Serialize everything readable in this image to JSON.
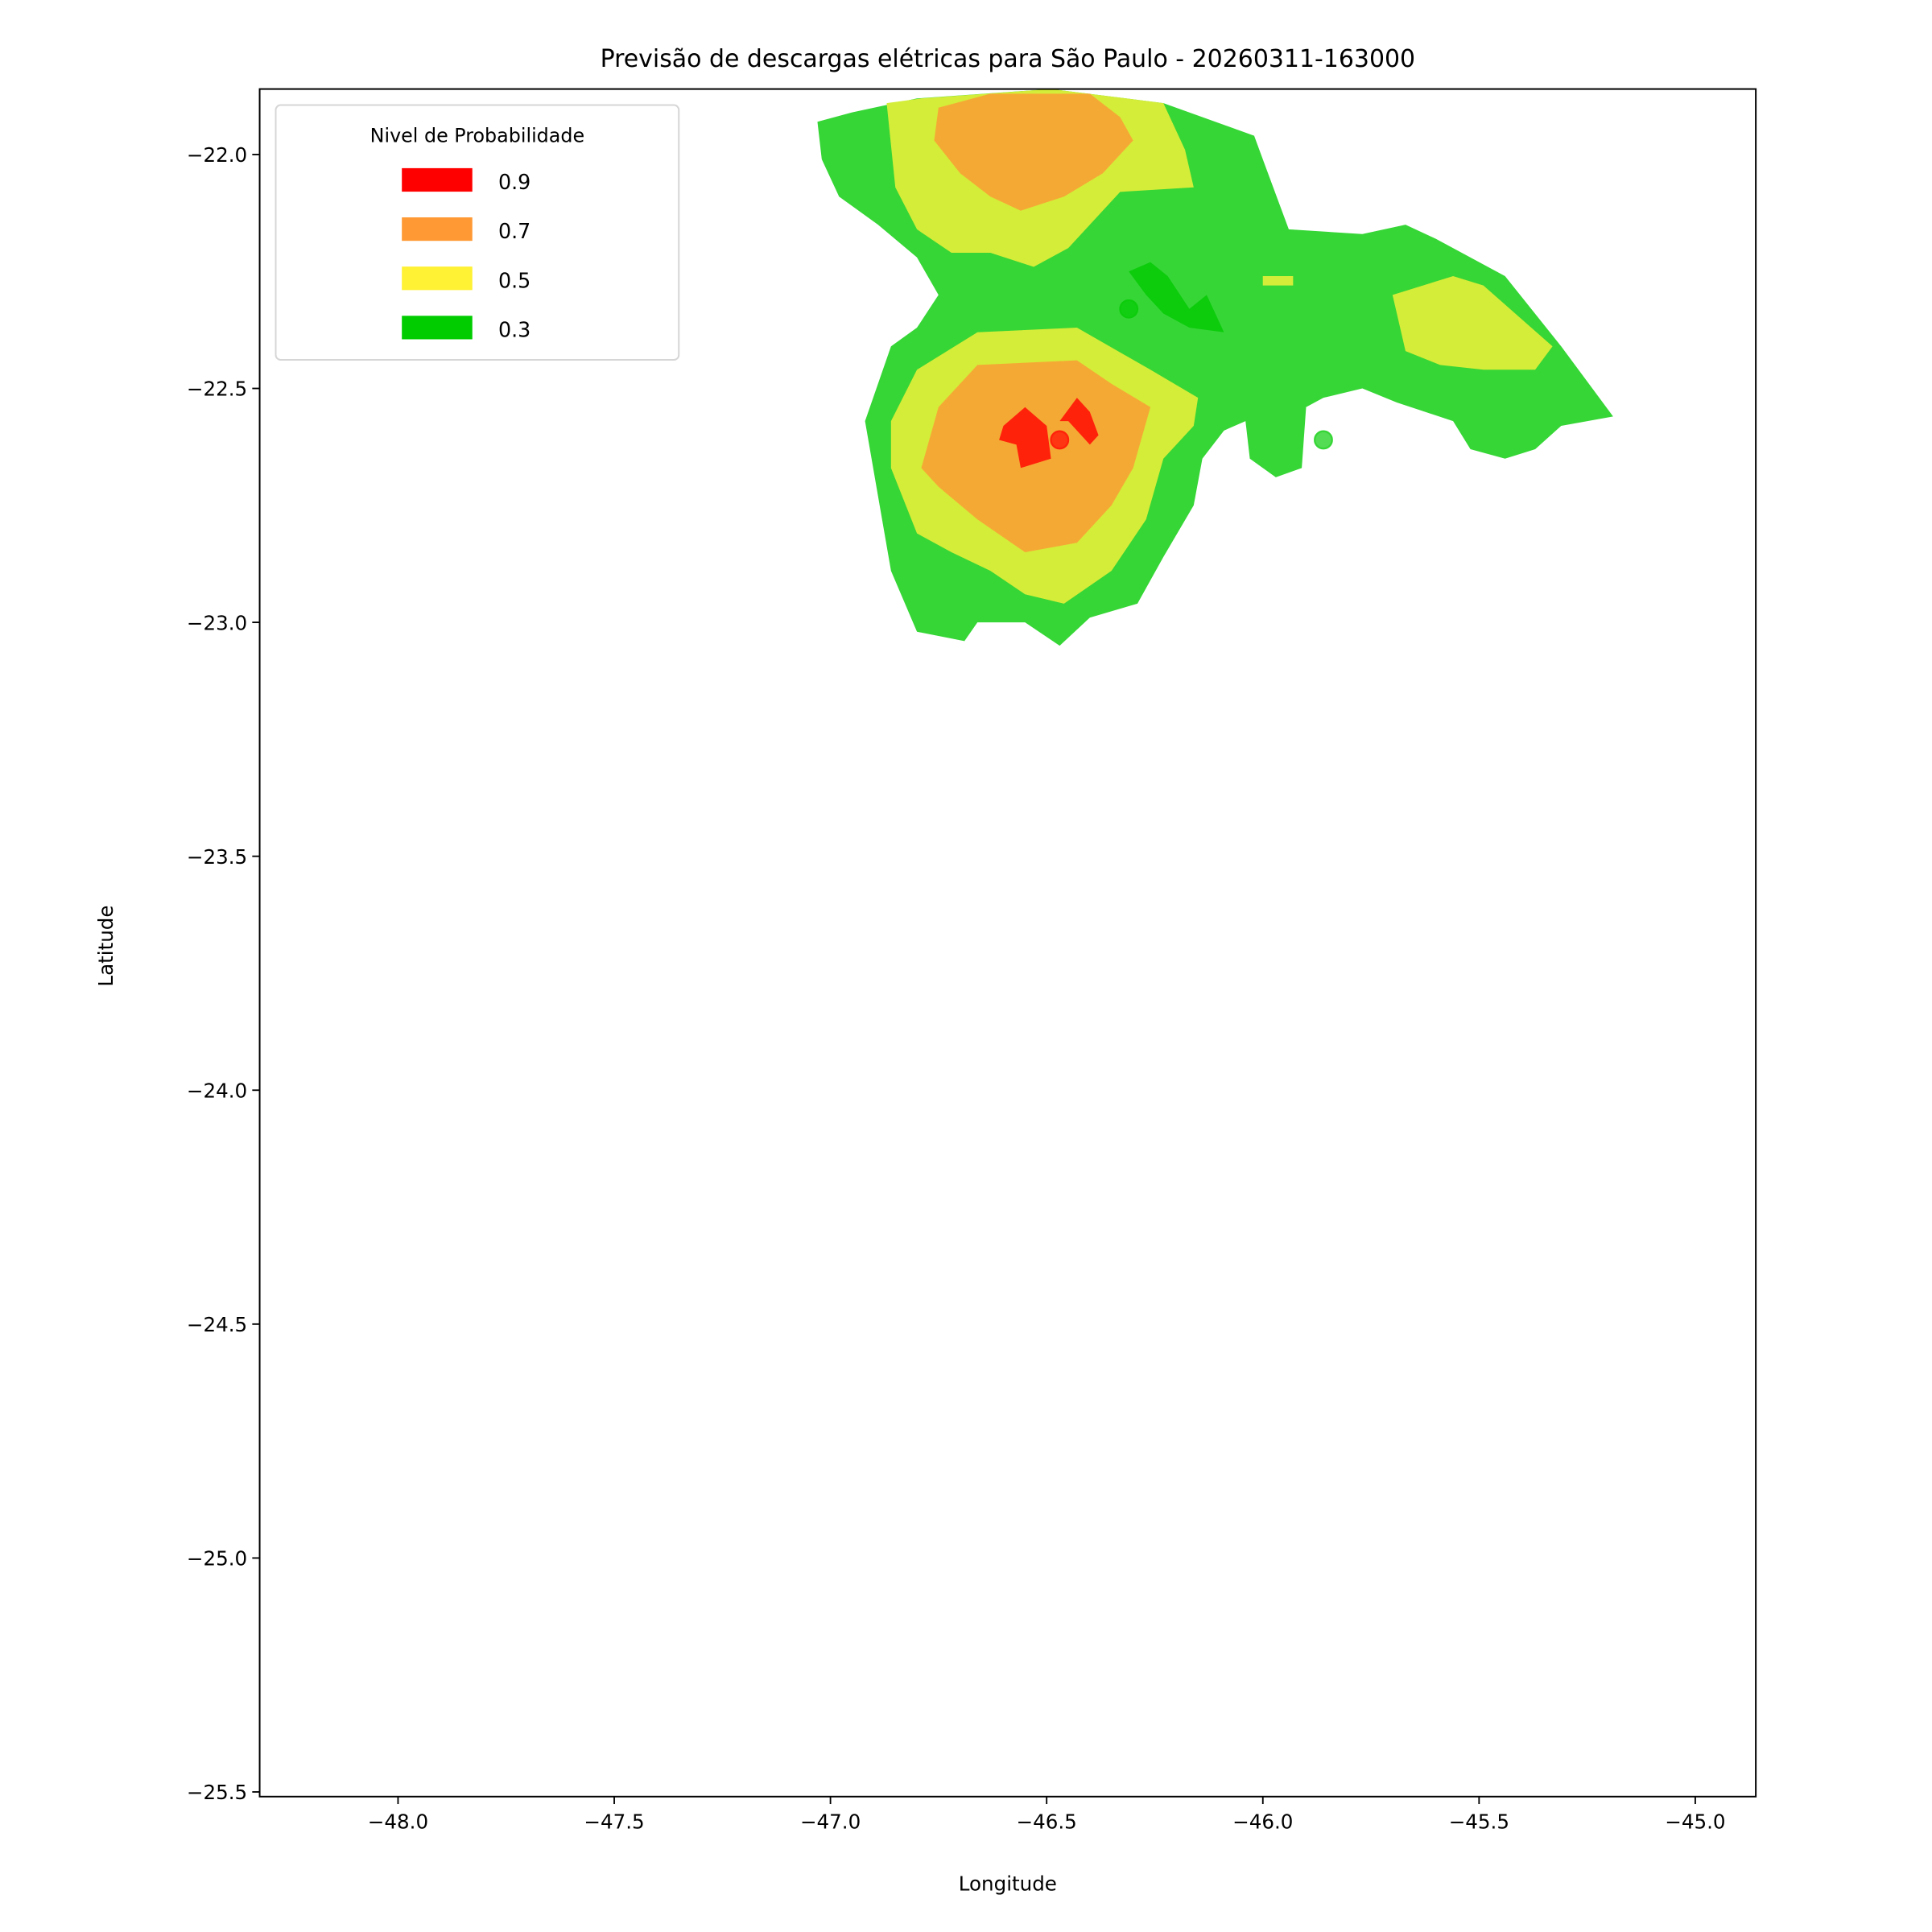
{
  "chart_data": {
    "type": "contour",
    "title": "Previsão de descargas elétricas para São Paulo - 20260311-163000",
    "xlabel": "Longitude",
    "ylabel": "Latitude",
    "xlim": [
      -48.32,
      -44.86
    ],
    "ylim": [
      -25.51,
      -21.86
    ],
    "xticks": [
      -48.0,
      -47.5,
      -47.0,
      -46.5,
      -46.0,
      -45.5,
      -45.0
    ],
    "xtick_labels": [
      "−48.0",
      "−47.5",
      "−47.0",
      "−46.5",
      "−46.0",
      "−45.5",
      "−45.0"
    ],
    "yticks": [
      -22.0,
      -22.5,
      -23.0,
      -23.5,
      -24.0,
      -24.5,
      -25.0,
      -25.5
    ],
    "ytick_labels": [
      "−22.0",
      "−22.5",
      "−23.0",
      "−23.5",
      "−24.0",
      "−24.5",
      "−25.0",
      "−25.5"
    ],
    "grid": false,
    "legend": {
      "title": "Nivel de Probabilidade",
      "placement": "upper-left",
      "entries": [
        {
          "label": "0.9",
          "color": "#ff0000"
        },
        {
          "label": "0.7",
          "color": "#ff9933"
        },
        {
          "label": "0.5",
          "color": "#fff133"
        },
        {
          "label": "0.3",
          "color": "#00cc00"
        }
      ]
    },
    "regions": [
      {
        "level": 0.3,
        "color": "#36d636",
        "polygon": [
          [
            -47.03,
            -21.93
          ],
          [
            -46.95,
            -21.91
          ],
          [
            -46.8,
            -21.88
          ],
          [
            -46.49,
            -21.86
          ],
          [
            -46.23,
            -21.89
          ],
          [
            -46.02,
            -21.96
          ],
          [
            -46.0,
            -22.01
          ],
          [
            -45.94,
            -22.16
          ],
          [
            -45.77,
            -22.17
          ],
          [
            -45.67,
            -22.15
          ],
          [
            -45.6,
            -22.18
          ],
          [
            -45.44,
            -22.26
          ],
          [
            -45.31,
            -22.41
          ],
          [
            -45.19,
            -22.56
          ],
          [
            -45.31,
            -22.58
          ],
          [
            -45.37,
            -22.63
          ],
          [
            -45.44,
            -22.65
          ],
          [
            -45.52,
            -22.63
          ],
          [
            -45.56,
            -22.57
          ],
          [
            -45.69,
            -22.53
          ],
          [
            -45.77,
            -22.5
          ],
          [
            -45.86,
            -22.52
          ],
          [
            -45.9,
            -22.54
          ],
          [
            -45.91,
            -22.67
          ],
          [
            -45.97,
            -22.69
          ],
          [
            -46.03,
            -22.65
          ],
          [
            -46.04,
            -22.57
          ],
          [
            -46.09,
            -22.59
          ],
          [
            -46.14,
            -22.65
          ],
          [
            -46.16,
            -22.75
          ],
          [
            -46.23,
            -22.86
          ],
          [
            -46.29,
            -22.96
          ],
          [
            -46.4,
            -22.99
          ],
          [
            -46.47,
            -23.05
          ],
          [
            -46.55,
            -23.0
          ],
          [
            -46.66,
            -23.0
          ],
          [
            -46.69,
            -23.04
          ],
          [
            -46.8,
            -23.02
          ],
          [
            -46.86,
            -22.89
          ],
          [
            -46.92,
            -22.57
          ],
          [
            -46.86,
            -22.41
          ],
          [
            -46.8,
            -22.37
          ],
          [
            -46.75,
            -22.3
          ],
          [
            -46.8,
            -22.22
          ],
          [
            -46.89,
            -22.15
          ],
          [
            -46.98,
            -22.09
          ],
          [
            -47.02,
            -22.01
          ]
        ]
      },
      {
        "level": 0.5,
        "color": "#d4ed38",
        "polygon": [
          [
            -46.87,
            -21.89
          ],
          [
            -46.79,
            -21.88
          ],
          [
            -46.49,
            -21.86
          ],
          [
            -46.23,
            -21.89
          ],
          [
            -46.18,
            -21.99
          ],
          [
            -46.16,
            -22.07
          ],
          [
            -46.33,
            -22.08
          ],
          [
            -46.45,
            -22.2
          ],
          [
            -46.53,
            -22.24
          ],
          [
            -46.63,
            -22.21
          ],
          [
            -46.72,
            -22.21
          ],
          [
            -46.8,
            -22.16
          ],
          [
            -46.85,
            -22.07
          ]
        ]
      },
      {
        "level": 0.5,
        "color": "#d4ed38",
        "polygon": [
          [
            -46.86,
            -22.57
          ],
          [
            -46.8,
            -22.46
          ],
          [
            -46.66,
            -22.38
          ],
          [
            -46.43,
            -22.37
          ],
          [
            -46.26,
            -22.46
          ],
          [
            -46.15,
            -22.52
          ],
          [
            -46.16,
            -22.58
          ],
          [
            -46.23,
            -22.65
          ],
          [
            -46.27,
            -22.78
          ],
          [
            -46.35,
            -22.89
          ],
          [
            -46.46,
            -22.96
          ],
          [
            -46.55,
            -22.94
          ],
          [
            -46.63,
            -22.89
          ],
          [
            -46.72,
            -22.85
          ],
          [
            -46.8,
            -22.81
          ],
          [
            -46.86,
            -22.67
          ]
        ]
      },
      {
        "level": 0.5,
        "color": "#d4ed38",
        "polygon": [
          [
            -45.7,
            -22.3
          ],
          [
            -45.56,
            -22.26
          ],
          [
            -45.49,
            -22.28
          ],
          [
            -45.33,
            -22.41
          ],
          [
            -45.37,
            -22.46
          ],
          [
            -45.49,
            -22.46
          ],
          [
            -45.59,
            -22.45
          ],
          [
            -45.67,
            -22.42
          ]
        ]
      },
      {
        "level": 0.5,
        "color": "#d4ed38",
        "polygon": [
          [
            -46.0,
            -22.26
          ],
          [
            -45.93,
            -22.26
          ],
          [
            -45.93,
            -22.28
          ],
          [
            -46.0,
            -22.28
          ]
        ]
      },
      {
        "level": 0.3,
        "color": "#0ccc0c",
        "polygon": [
          [
            -46.31,
            -22.25
          ],
          [
            -46.26,
            -22.23
          ],
          [
            -46.22,
            -22.26
          ],
          [
            -46.17,
            -22.33
          ],
          [
            -46.13,
            -22.3
          ],
          [
            -46.09,
            -22.38
          ],
          [
            -46.17,
            -22.37
          ],
          [
            -46.23,
            -22.34
          ],
          [
            -46.27,
            -22.3
          ]
        ]
      },
      {
        "level": 0.7,
        "color": "#f5a935",
        "polygon": [
          [
            -46.75,
            -21.9
          ],
          [
            -46.63,
            -21.87
          ],
          [
            -46.4,
            -21.87
          ],
          [
            -46.33,
            -21.92
          ],
          [
            -46.3,
            -21.97
          ],
          [
            -46.37,
            -22.04
          ],
          [
            -46.46,
            -22.09
          ],
          [
            -46.56,
            -22.12
          ],
          [
            -46.63,
            -22.09
          ],
          [
            -46.7,
            -22.04
          ],
          [
            -46.76,
            -21.97
          ]
        ]
      },
      {
        "level": 0.7,
        "color": "#f5a935",
        "polygon": [
          [
            -46.79,
            -22.67
          ],
          [
            -46.75,
            -22.54
          ],
          [
            -46.66,
            -22.45
          ],
          [
            -46.43,
            -22.44
          ],
          [
            -46.35,
            -22.49
          ],
          [
            -46.26,
            -22.54
          ],
          [
            -46.3,
            -22.67
          ],
          [
            -46.35,
            -22.75
          ],
          [
            -46.43,
            -22.83
          ],
          [
            -46.55,
            -22.85
          ],
          [
            -46.66,
            -22.78
          ],
          [
            -46.75,
            -22.71
          ]
        ]
      },
      {
        "level": 0.9,
        "color": "#ff220a",
        "polygon": [
          [
            -46.6,
            -22.58
          ],
          [
            -46.55,
            -22.54
          ],
          [
            -46.5,
            -22.58
          ],
          [
            -46.49,
            -22.65
          ],
          [
            -46.56,
            -22.67
          ],
          [
            -46.57,
            -22.62
          ],
          [
            -46.61,
            -22.61
          ]
        ]
      },
      {
        "level": 0.9,
        "color": "#ff220a",
        "polygon": [
          [
            -46.47,
            -22.57
          ],
          [
            -46.43,
            -22.52
          ],
          [
            -46.4,
            -22.55
          ],
          [
            -46.38,
            -22.6
          ],
          [
            -46.4,
            -22.62
          ],
          [
            -46.45,
            -22.57
          ]
        ]
      }
    ],
    "points": [
      {
        "lon": -46.47,
        "lat": -22.61,
        "color": "#ff220a"
      },
      {
        "lon": -46.31,
        "lat": -22.33,
        "color": "#0ccc0c"
      },
      {
        "lon": -45.86,
        "lat": -22.61,
        "color": "#36d636"
      }
    ]
  }
}
